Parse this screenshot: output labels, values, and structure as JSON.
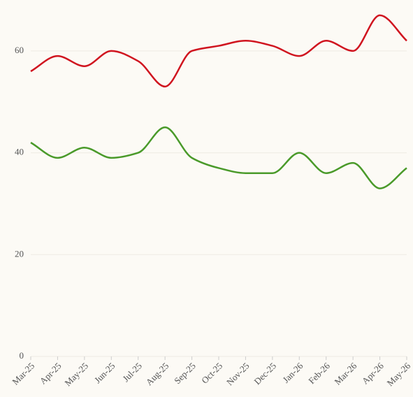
{
  "chart_data": {
    "type": "line",
    "categories": [
      "Mar-25",
      "Apr-25",
      "May-25",
      "Jun-25",
      "Jul-25",
      "Aug-25",
      "Sep-25",
      "Oct-25",
      "Nov-25",
      "Dec-25",
      "Jan-26",
      "Feb-26",
      "Mar-26",
      "Apr-26",
      "May-26"
    ],
    "series": [
      {
        "color": "#d0141f",
        "values": [
          56,
          59,
          57,
          60,
          58,
          53,
          60,
          61,
          62,
          61,
          59,
          62,
          60,
          67,
          62
        ]
      },
      {
        "color": "#4a9a2a",
        "values": [
          42,
          39,
          41,
          39,
          40,
          45,
          39,
          37,
          36,
          36,
          40,
          36,
          38,
          33,
          37
        ]
      }
    ],
    "ylim": [
      0,
      70
    ],
    "yticks": [
      0,
      20,
      40,
      60
    ],
    "grid": true
  }
}
